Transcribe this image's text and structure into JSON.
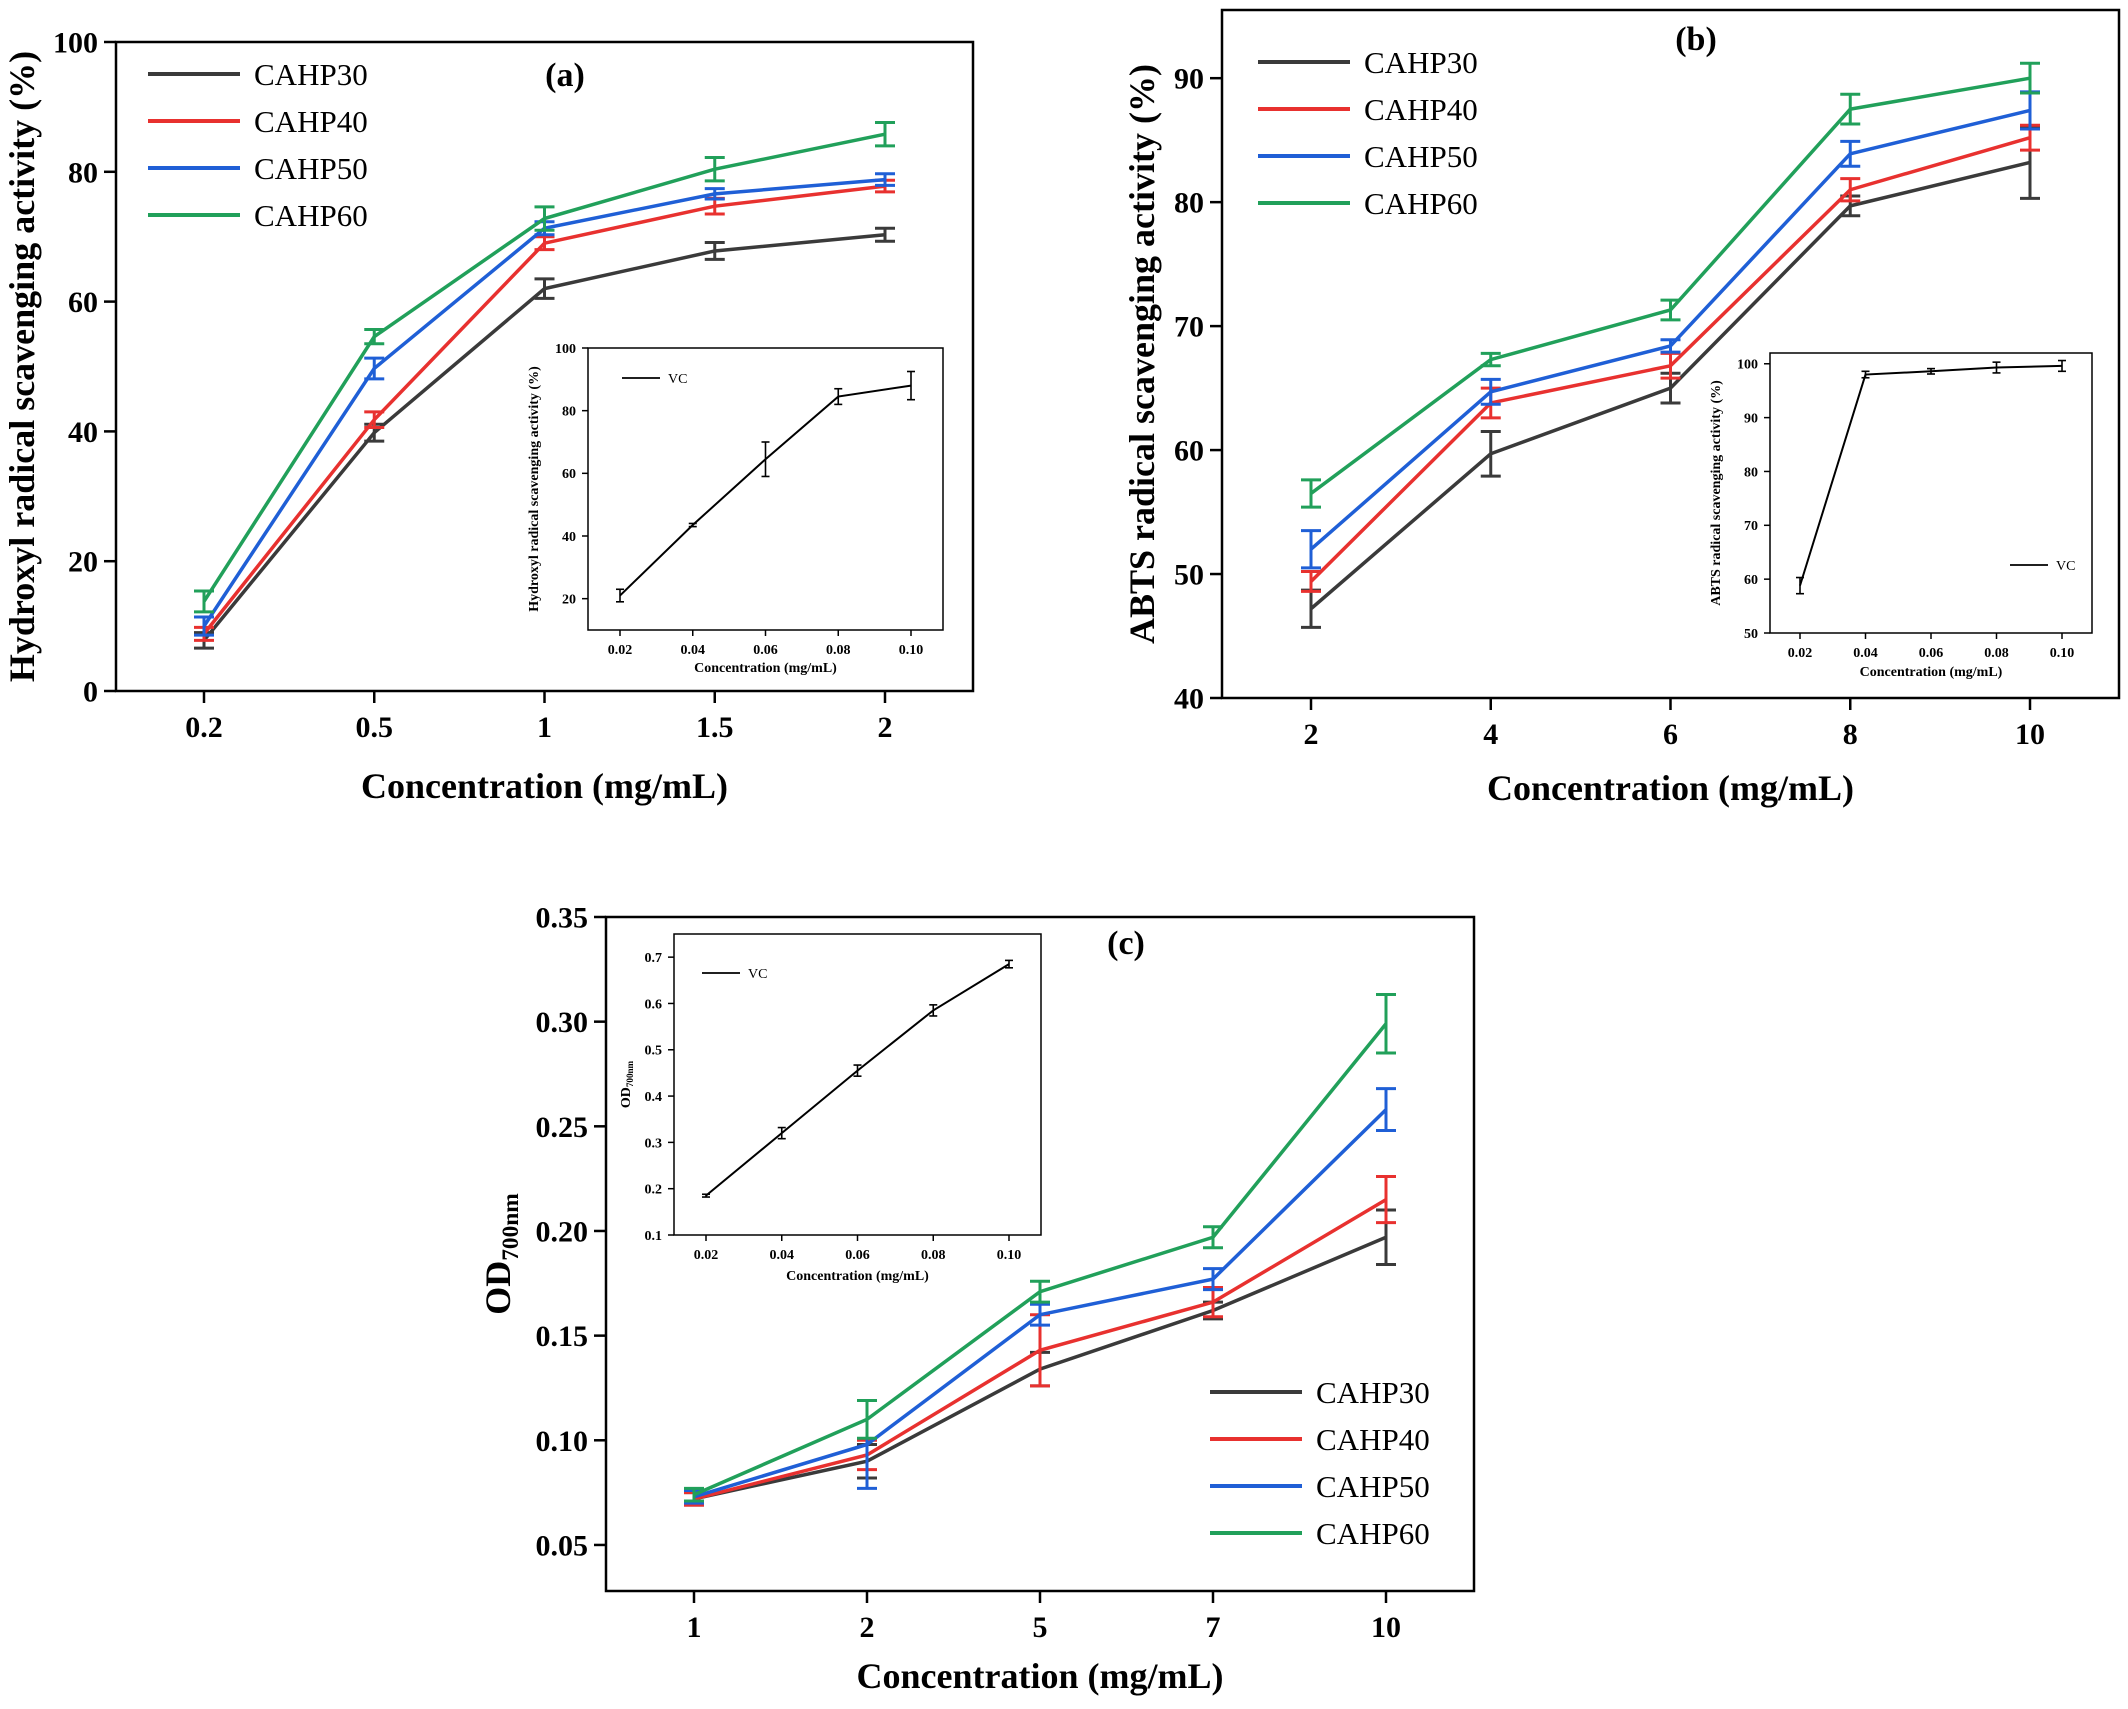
{
  "colors": {
    "CAHP30": "#3a3a3a",
    "CAHP40": "#e8312f",
    "CAHP50": "#1f5fd6",
    "CAHP60": "#21a05a",
    "VC": "#000000"
  },
  "chart_data": [
    {
      "panel": "(a)",
      "type": "line",
      "title": "",
      "xlabel": "Concentration (mg/mL)",
      "ylabel": "Hydroxyl radical scavenging activity (%)",
      "x_ticks": [
        "0.2",
        "0.5",
        "1",
        "1.5",
        "2"
      ],
      "y_ticks": [
        "0",
        "20",
        "40",
        "60",
        "80",
        "100"
      ],
      "ylim": [
        0,
        100
      ],
      "legend_position": "top-left",
      "series": [
        {
          "name": "CAHP30",
          "values": [
            7.8,
            39.8,
            62.0,
            67.8,
            70.3
          ],
          "errors": [
            1.2,
            1.3,
            1.5,
            1.3,
            1.0
          ]
        },
        {
          "name": "CAHP40",
          "values": [
            8.8,
            41.8,
            69.0,
            74.7,
            77.8
          ],
          "errors": [
            1.0,
            1.2,
            1.0,
            1.2,
            0.9
          ]
        },
        {
          "name": "CAHP50",
          "values": [
            10.0,
            49.7,
            71.3,
            76.6,
            78.8
          ],
          "errors": [
            1.4,
            1.6,
            1.0,
            0.8,
            0.9
          ]
        },
        {
          "name": "CAHP60",
          "values": [
            13.8,
            54.6,
            72.8,
            80.4,
            85.8
          ],
          "errors": [
            1.6,
            1.1,
            1.8,
            1.8,
            1.8
          ]
        }
      ],
      "inset": {
        "type": "line",
        "xlabel": "Concentration (mg/mL)",
        "ylabel": "Hydroxyl radical scavenging activity (%)",
        "x_ticks": [
          "0.02",
          "0.04",
          "0.06",
          "0.08",
          "0.10"
        ],
        "y_ticks": [
          "20",
          "40",
          "60",
          "80",
          "100"
        ],
        "ylim": [
          10,
          100
        ],
        "legend_position": "top-left",
        "series": [
          {
            "name": "VC",
            "values": [
              21.0,
              43.5,
              64.5,
              84.5,
              88.0
            ],
            "errors": [
              2.0,
              0.5,
              5.5,
              2.5,
              4.5
            ]
          }
        ]
      }
    },
    {
      "panel": "(b)",
      "type": "line",
      "title": "",
      "xlabel": "Concentration (mg/mL)",
      "ylabel": "ABTS radical scavenging activity (%)",
      "x_ticks": [
        "2",
        "4",
        "6",
        "8",
        "10"
      ],
      "y_ticks": [
        "40",
        "50",
        "60",
        "70",
        "80",
        "90"
      ],
      "ylim": [
        40,
        95.5
      ],
      "legend_position": "top-left",
      "series": [
        {
          "name": "CAHP30",
          "values": [
            47.2,
            59.7,
            65.0,
            79.7,
            83.2
          ],
          "errors": [
            1.5,
            1.8,
            1.2,
            0.8,
            2.9
          ]
        },
        {
          "name": "CAHP40",
          "values": [
            49.4,
            63.8,
            66.8,
            81.0,
            85.2
          ],
          "errors": [
            0.8,
            1.2,
            1.0,
            0.9,
            1.0
          ]
        },
        {
          "name": "CAHP50",
          "values": [
            52.0,
            64.7,
            68.4,
            83.9,
            87.4
          ],
          "errors": [
            1.5,
            1.0,
            0.5,
            1.0,
            1.5
          ]
        },
        {
          "name": "CAHP60",
          "values": [
            56.5,
            67.3,
            71.3,
            87.5,
            90.0
          ],
          "errors": [
            1.1,
            0.5,
            0.8,
            1.2,
            1.2
          ]
        }
      ],
      "inset": {
        "type": "line",
        "xlabel": "Concentration (mg/mL)",
        "ylabel": "ABTS radical scavenging activity (%)",
        "x_ticks": [
          "0.02",
          "0.04",
          "0.06",
          "0.08",
          "0.10"
        ],
        "y_ticks": [
          "50",
          "60",
          "70",
          "80",
          "90",
          "100"
        ],
        "ylim": [
          50,
          102
        ],
        "legend_position": "bottom-right",
        "series": [
          {
            "name": "VC",
            "values": [
              58.8,
              98.0,
              98.6,
              99.3,
              99.6
            ],
            "errors": [
              1.5,
              0.6,
              0.5,
              1.0,
              1.0
            ]
          }
        ]
      }
    },
    {
      "panel": "(c)",
      "type": "line",
      "title": "",
      "xlabel": "Concentration (mg/mL)",
      "ylabel_main": "OD",
      "ylabel_sub": "700nm",
      "x_ticks": [
        "1",
        "2",
        "5",
        "7",
        "10"
      ],
      "y_ticks": [
        "0.05",
        "0.10",
        "0.15",
        "0.20",
        "0.25",
        "0.30",
        "0.35"
      ],
      "ylim": [
        0.028,
        0.35
      ],
      "legend_position": "bottom-right",
      "series": [
        {
          "name": "CAHP30",
          "values": [
            0.072,
            0.09,
            0.134,
            0.162,
            0.197
          ],
          "errors": [
            0.003,
            0.008,
            0.008,
            0.004,
            0.013
          ]
        },
        {
          "name": "CAHP40",
          "values": [
            0.072,
            0.093,
            0.143,
            0.166,
            0.215
          ],
          "errors": [
            0.003,
            0.007,
            0.017,
            0.007,
            0.011
          ]
        },
        {
          "name": "CAHP50",
          "values": [
            0.073,
            0.098,
            0.16,
            0.177,
            0.258
          ],
          "errors": [
            0.003,
            0.021,
            0.005,
            0.005,
            0.01
          ]
        },
        {
          "name": "CAHP60",
          "values": [
            0.074,
            0.11,
            0.171,
            0.197,
            0.299
          ],
          "errors": [
            0.003,
            0.009,
            0.005,
            0.005,
            0.014
          ]
        }
      ],
      "inset": {
        "type": "line",
        "xlabel": "Concentration (mg/mL)",
        "ylabel_main": "OD",
        "ylabel_sub": "700nm",
        "x_ticks": [
          "0.02",
          "0.04",
          "0.06",
          "0.08",
          "0.10"
        ],
        "y_ticks": [
          "0.1",
          "0.2",
          "0.3",
          "0.4",
          "0.5",
          "0.6",
          "0.7"
        ],
        "ylim": [
          0.1,
          0.75
        ],
        "legend_position": "top-left",
        "series": [
          {
            "name": "VC",
            "values": [
              0.185,
              0.32,
              0.455,
              0.585,
              0.685
            ],
            "errors": [
              0.003,
              0.012,
              0.012,
              0.012,
              0.008
            ]
          }
        ]
      }
    }
  ]
}
